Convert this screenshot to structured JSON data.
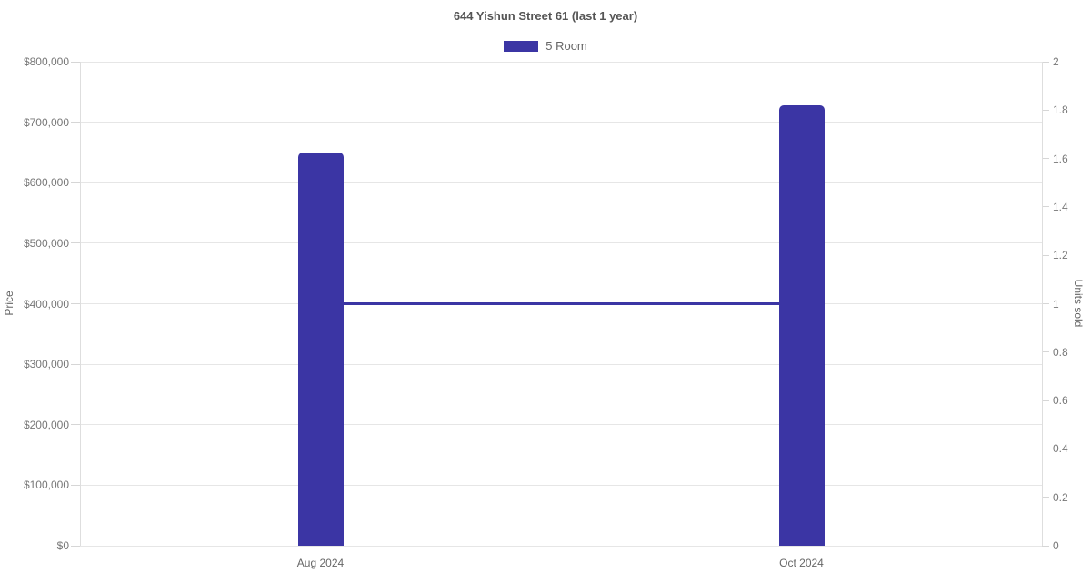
{
  "chart_data": {
    "type": "bar",
    "title": "644 Yishun Street 61 (last 1 year)",
    "categories": [
      "Aug 2024",
      "Oct 2024"
    ],
    "series": [
      {
        "name": "5 Room",
        "type": "bar",
        "axis": "left",
        "values": [
          650000,
          728000
        ],
        "color": "#3b35a4"
      },
      {
        "name": "Units sold",
        "type": "line",
        "axis": "right",
        "values": [
          1,
          1
        ],
        "color": "#3b35a4"
      }
    ],
    "legend": {
      "position": "top",
      "items": [
        {
          "label": "5 Room",
          "color": "#3b35a4"
        }
      ]
    },
    "left_axis": {
      "label": "Price",
      "min": 0,
      "max": 800000,
      "ticks": [
        "$0",
        "$100,000",
        "$200,000",
        "$300,000",
        "$400,000",
        "$500,000",
        "$600,000",
        "$700,000",
        "$800,000"
      ]
    },
    "right_axis": {
      "label": "Units sold",
      "min": 0,
      "max": 2,
      "ticks": [
        "0",
        "0.2",
        "0.4",
        "0.6",
        "0.8",
        "1",
        "1.2",
        "1.4",
        "1.6",
        "1.8",
        "2"
      ]
    },
    "grid": true,
    "colors": {
      "grid": "#e6e6e6",
      "axis_border": "#dedede",
      "tick_mark": "#d6d6d6",
      "title_text": "#555555",
      "tick_text": "#777777",
      "axis_title_text": "#666666",
      "background": "#ffffff"
    }
  }
}
